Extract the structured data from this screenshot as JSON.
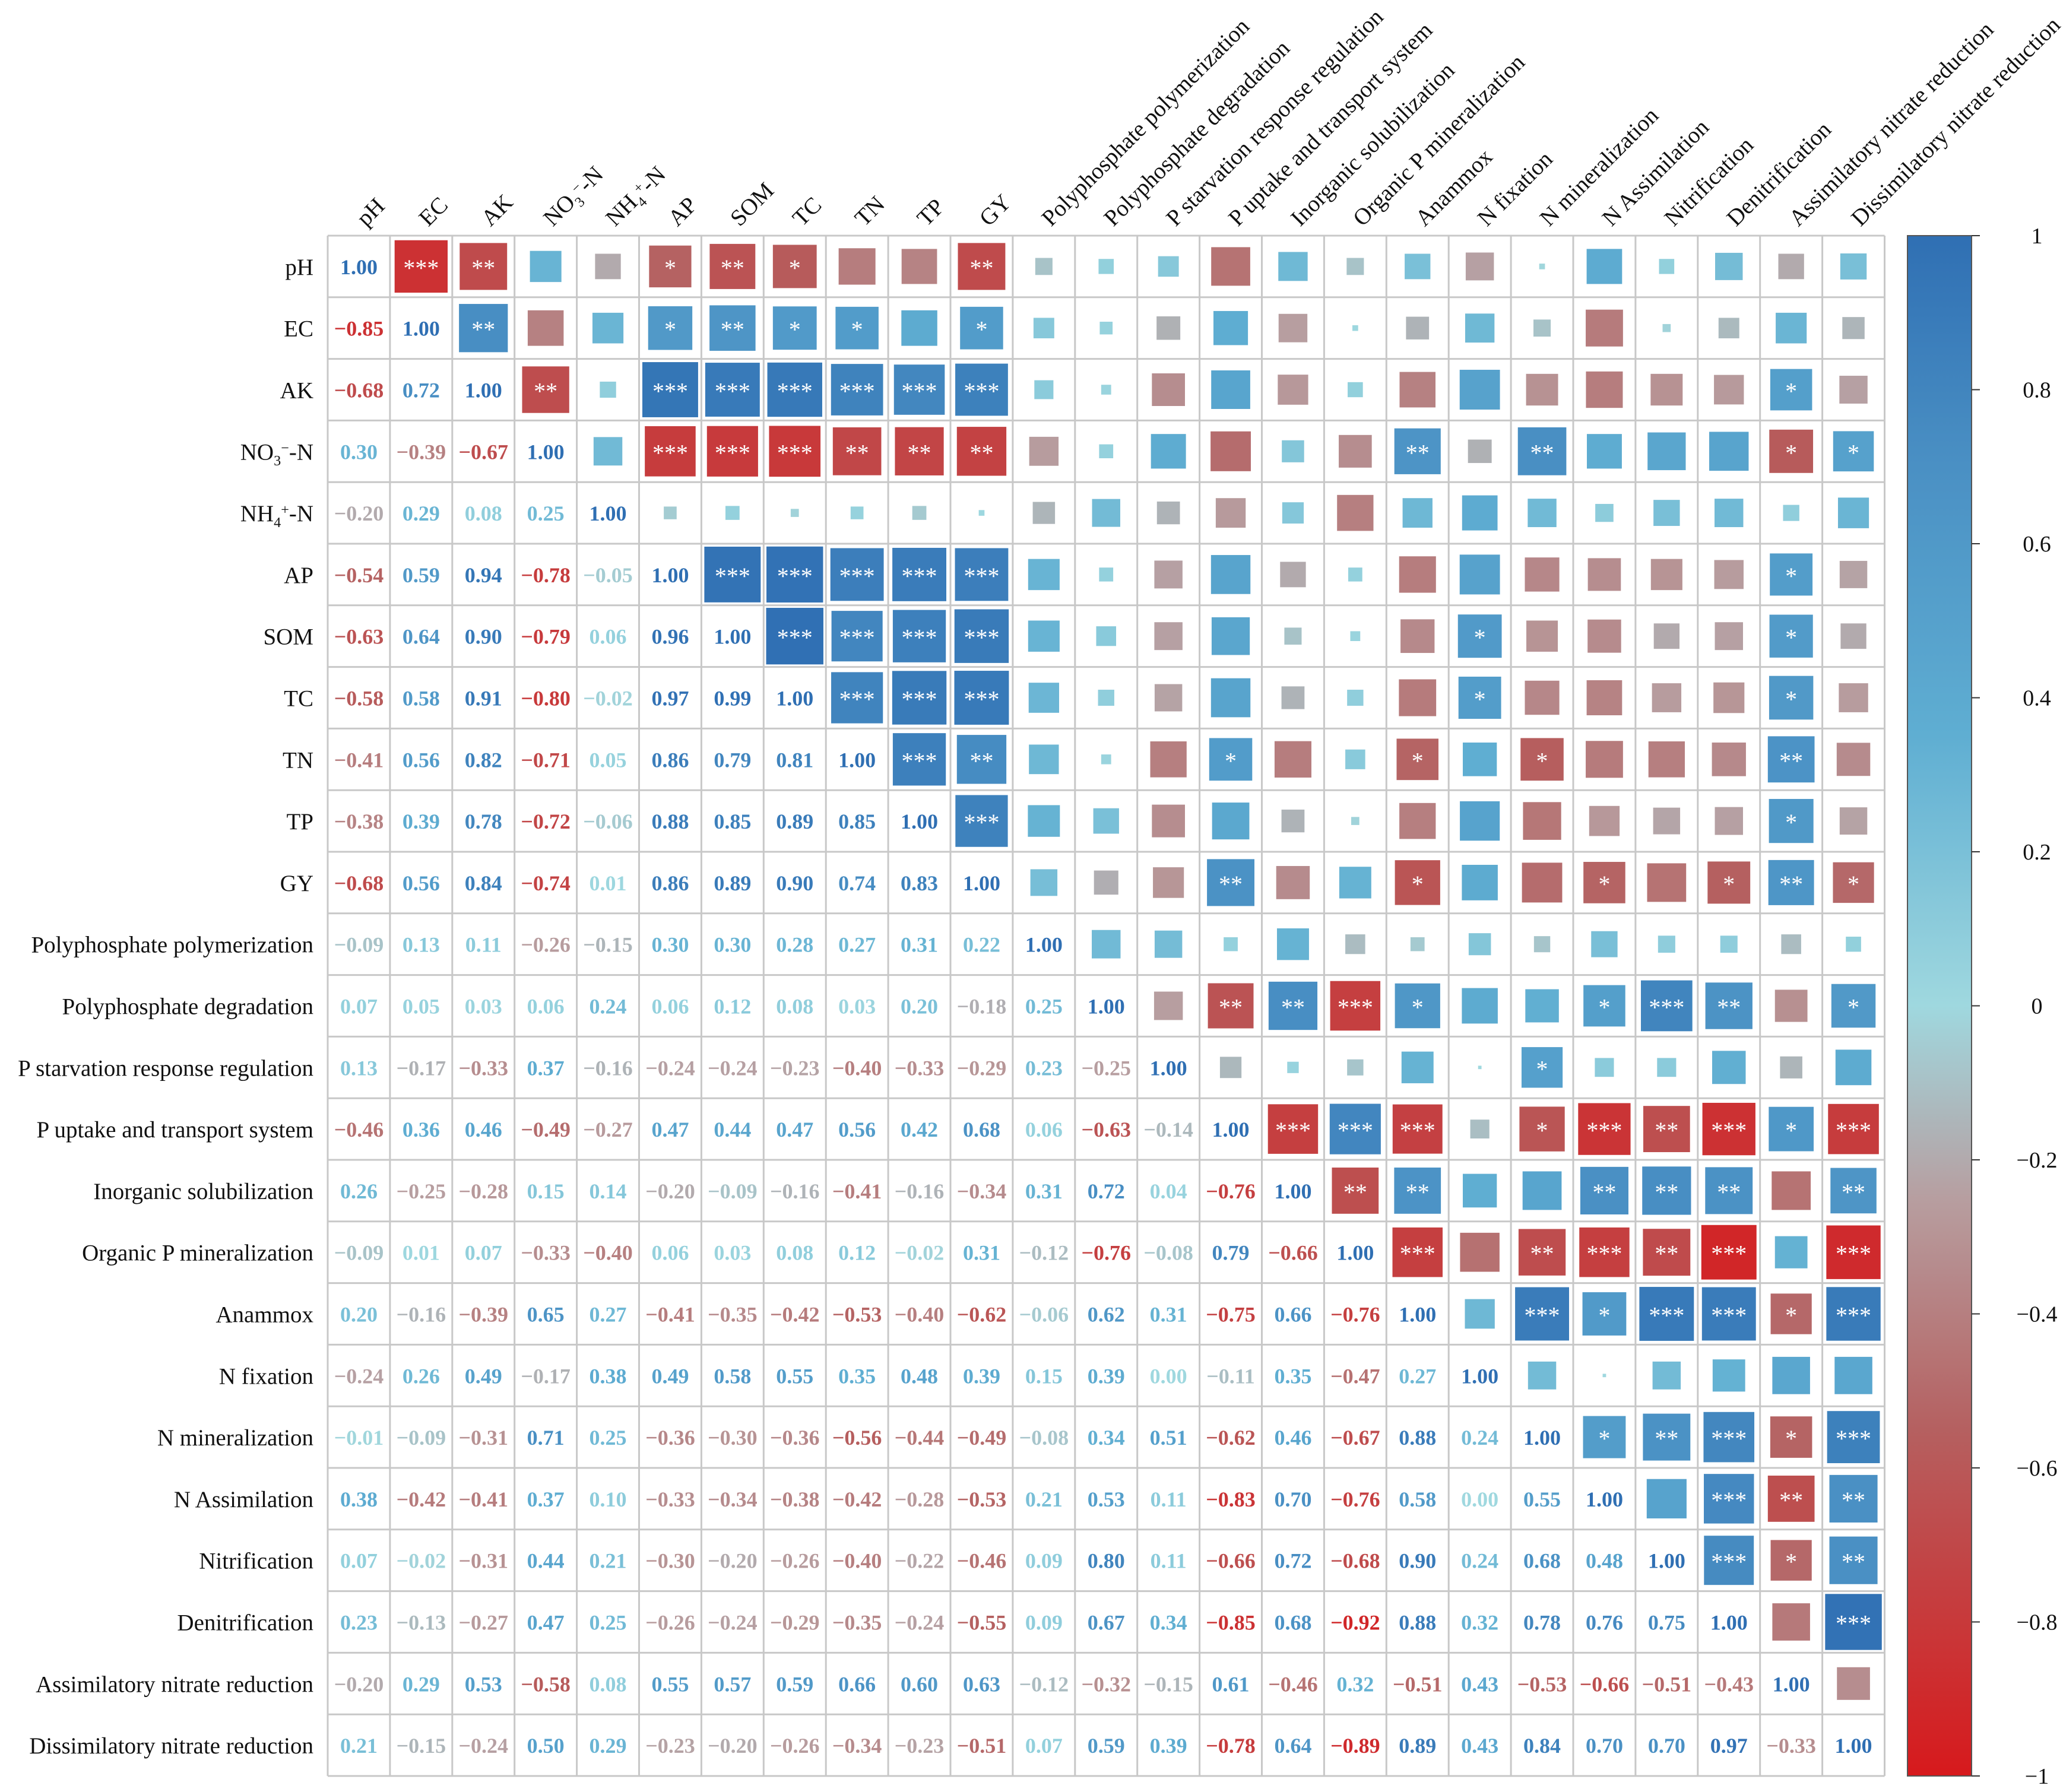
{
  "chart_data": {
    "type": "heatmap",
    "subtype": "correlation-matrix",
    "labels": [
      "pH",
      "EC",
      "AK",
      "NO3−-N",
      "NH4+-N",
      "AP",
      "SOM",
      "TC",
      "TN",
      "TP",
      "GY",
      "Polyphosphate polymerization",
      "Polyphosphate degradation",
      "P starvation response regulation",
      "P uptake and transport system",
      "Inorganic  solubilization",
      "Organic P mineralization",
      "Anammox",
      "N fixation",
      "N mineralization",
      "N Assimilation",
      "Nitrification",
      "Denitrification",
      "Assimilatory nitrate reduction",
      "Dissimilatory nitrate reduction"
    ],
    "top_labels": [
      "pH",
      "EC",
      "AK",
      "NO3−-N",
      "NH4+-N",
      "AP",
      "SOM",
      "TC",
      "TN",
      "TP",
      "GY",
      "Polyphosphate polymerization",
      "Polyphosphate degradation",
      "P starvation response regulation",
      "P uptake and transport system",
      "Inorganic  solubilization",
      "Organic P mineralization",
      "Anammox",
      "N fixation",
      "N mineralization",
      "N Assimilation",
      "Nitrification",
      "Denitrification",
      "Assimilatory nitrate reduction",
      "Dissimilatory nitrate reduction"
    ],
    "lower_triangle_values": [
      [
        "1.00"
      ],
      [
        "−0.85",
        "1.00"
      ],
      [
        "−0.68",
        "0.72",
        "1.00"
      ],
      [
        "0.30",
        "−0.39",
        "−0.67",
        "1.00"
      ],
      [
        "−0.20",
        "0.29",
        "0.08",
        "0.25",
        "1.00"
      ],
      [
        "−0.54",
        "0.59",
        "0.94",
        "−0.78",
        "−0.05",
        "1.00"
      ],
      [
        "−0.63",
        "0.64",
        "0.90",
        "−0.79",
        "0.06",
        "0.96",
        "1.00"
      ],
      [
        "−0.58",
        "0.58",
        "0.91",
        "−0.80",
        "−0.02",
        "0.97",
        "0.99",
        "1.00"
      ],
      [
        "−0.41",
        "0.56",
        "0.82",
        "−0.71",
        "0.05",
        "0.86",
        "0.79",
        "0.81",
        "1.00"
      ],
      [
        "−0.38",
        "0.39",
        "0.78",
        "−0.72",
        "−0.06",
        "0.88",
        "0.85",
        "0.89",
        "0.85",
        "1.00"
      ],
      [
        "−0.68",
        "0.56",
        "0.84",
        "−0.74",
        "0.01",
        "0.86",
        "0.89",
        "0.90",
        "0.74",
        "0.83",
        "1.00"
      ],
      [
        "−0.09",
        "0.13",
        "0.11",
        "−0.26",
        "−0.15",
        "0.30",
        "0.30",
        "0.28",
        "0.27",
        "0.31",
        "0.22",
        "1.00"
      ],
      [
        "0.07",
        "0.05",
        "0.03",
        "0.06",
        "0.24",
        "0.06",
        "0.12",
        "0.08",
        "0.03",
        "0.20",
        "−0.18",
        "0.25",
        "1.00"
      ],
      [
        "0.13",
        "−0.17",
        "−0.33",
        "0.37",
        "−0.16",
        "−0.24",
        "−0.24",
        "−0.23",
        "−0.40",
        "−0.33",
        "−0.29",
        "0.23",
        "−0.25",
        "1.00"
      ],
      [
        "−0.46",
        "0.36",
        "0.46",
        "−0.49",
        "−0.27",
        "0.47",
        "0.44",
        "0.47",
        "0.56",
        "0.42",
        "0.68",
        "0.06",
        "−0.63",
        "−0.14",
        "1.00"
      ],
      [
        "0.26",
        "−0.25",
        "−0.28",
        "0.15",
        "0.14",
        "−0.20",
        "−0.09",
        "−0.16",
        "−0.41",
        "−0.16",
        "−0.34",
        "0.31",
        "0.72",
        "0.04",
        "−0.76",
        "1.00"
      ],
      [
        "−0.09",
        "0.01",
        "0.07",
        "−0.33",
        "−0.40",
        "0.06",
        "0.03",
        "0.08",
        "0.12",
        "−0.02",
        "0.31",
        "−0.12",
        "−0.76",
        "−0.08",
        "0.79",
        "−0.66",
        "1.00"
      ],
      [
        "0.20",
        "−0.16",
        "−0.39",
        "0.65",
        "0.27",
        "−0.41",
        "−0.35",
        "−0.42",
        "−0.53",
        "−0.40",
        "−0.62",
        "−0.06",
        "0.62",
        "0.31",
        "−0.75",
        "0.66",
        "−0.76",
        "1.00"
      ],
      [
        "−0.24",
        "0.26",
        "0.49",
        "−0.17",
        "0.38",
        "0.49",
        "0.58",
        "0.55",
        "0.35",
        "0.48",
        "0.39",
        "0.15",
        "0.39",
        "0.00",
        "−0.11",
        "0.35",
        "−0.47",
        "0.27",
        "1.00"
      ],
      [
        "−0.01",
        "−0.09",
        "−0.31",
        "0.71",
        "0.25",
        "−0.36",
        "−0.30",
        "−0.36",
        "−0.56",
        "−0.44",
        "−0.49",
        "−0.08",
        "0.34",
        "0.51",
        "−0.62",
        "0.46",
        "−0.67",
        "0.88",
        "0.24",
        "1.00"
      ],
      [
        "0.38",
        "−0.42",
        "−0.41",
        "0.37",
        "0.10",
        "−0.33",
        "−0.34",
        "−0.38",
        "−0.42",
        "−0.28",
        "−0.53",
        "0.21",
        "0.53",
        "0.11",
        "−0.83",
        "0.70",
        "−0.76",
        "0.58",
        "0.00",
        "0.55",
        "1.00"
      ],
      [
        "0.07",
        "−0.02",
        "−0.31",
        "0.44",
        "0.21",
        "−0.30",
        "−0.20",
        "−0.26",
        "−0.40",
        "−0.22",
        "−0.46",
        "0.09",
        "0.80",
        "0.11",
        "−0.66",
        "0.72",
        "−0.68",
        "0.90",
        "0.24",
        "0.68",
        "0.48",
        "1.00"
      ],
      [
        "0.23",
        "−0.13",
        "−0.27",
        "0.47",
        "0.25",
        "−0.26",
        "−0.24",
        "−0.29",
        "−0.35",
        "−0.24",
        "−0.55",
        "0.09",
        "0.67",
        "0.34",
        "−0.85",
        "0.68",
        "−0.92",
        "0.88",
        "0.32",
        "0.78",
        "0.76",
        "0.75",
        "1.00"
      ],
      [
        "−0.20",
        "0.29",
        "0.53",
        "−0.58",
        "0.08",
        "0.55",
        "0.57",
        "0.59",
        "0.66",
        "0.60",
        "0.63",
        "−0.12",
        "−0.32",
        "−0.15",
        "0.61",
        "−0.46",
        "0.32",
        "−0.51",
        "0.43",
        "−0.53",
        "−0.66",
        "−0.51",
        "−0.43",
        "1.00"
      ],
      [
        "0.21",
        "−0.15",
        "−0.24",
        "0.50",
        "0.29",
        "−0.23",
        "−0.20",
        "−0.26",
        "−0.34",
        "−0.23",
        "−0.51",
        "0.07",
        "0.59",
        "0.39",
        "−0.78",
        "0.64",
        "−0.89",
        "0.89",
        "0.43",
        "0.84",
        "0.70",
        "0.70",
        "0.97",
        "−0.33",
        "1.00"
      ]
    ],
    "significance_upper": [
      "0,1,***",
      "0,2,**",
      "0,5,*",
      "0,6,**",
      "0,7,*",
      "0,10,**",
      "1,2,**",
      "1,5,*",
      "1,6,**",
      "1,7,*",
      "1,8,*",
      "1,10,*",
      "2,3,**",
      "2,5,***",
      "2,6,***",
      "2,7,***",
      "2,8,***",
      "2,9,***",
      "2,10,***",
      "2,23,*",
      "3,5,***",
      "3,6,***",
      "3,7,***",
      "3,8,**",
      "3,9,**",
      "3,10,**",
      "3,17,**",
      "3,19,**",
      "3,23,*",
      "3,24,*",
      "5,6,***",
      "5,7,***",
      "5,8,***",
      "5,9,***",
      "5,10,***",
      "5,23,*",
      "6,7,***",
      "6,8,***",
      "6,9,***",
      "6,10,***",
      "6,18,*",
      "6,23,*",
      "7,8,***",
      "7,9,***",
      "7,10,***",
      "7,18,*",
      "7,23,*",
      "8,9,***",
      "8,10,**",
      "8,14,*",
      "8,17,*",
      "8,19,*",
      "8,23,**",
      "9,10,***",
      "9,23,*",
      "10,14,**",
      "10,17,*",
      "10,20,*",
      "10,22,*",
      "10,23,**",
      "10,24,*",
      "12,14,**",
      "12,15,**",
      "12,16,***",
      "12,17,*",
      "12,20,*",
      "12,21,***",
      "12,22,**",
      "12,24,*",
      "13,19,*",
      "14,15,***",
      "14,16,***",
      "14,17,***",
      "14,19,*",
      "14,20,***",
      "14,21,**",
      "14,22,***",
      "14,23,*",
      "14,24,***",
      "15,16,**",
      "15,17,**",
      "15,20,**",
      "15,21,**",
      "15,22,**",
      "15,24,**",
      "16,17,***",
      "16,19,**",
      "16,20,***",
      "16,21,**",
      "16,22,***",
      "16,24,***",
      "17,19,***",
      "17,20,*",
      "17,21,***",
      "17,22,***",
      "17,23,*",
      "17,24,***",
      "19,20,*",
      "19,21,**",
      "19,22,***",
      "19,23,*",
      "19,24,***",
      "20,22,***",
      "20,23,**",
      "20,24,**",
      "21,22,***",
      "21,23,*",
      "21,24,**",
      "22,24,***"
    ],
    "colorbar": {
      "ticks": [
        "1",
        "0.8",
        "0.6",
        "0.4",
        "0.2",
        "0",
        "−0.2",
        "−0.4",
        "−0.6",
        "−0.8",
        "−1"
      ],
      "range": [
        -1,
        1
      ],
      "low_color": "#d7191c",
      "mid_color": "#9fd8df",
      "high_color": "#2f6fb3"
    },
    "title": "",
    "xlabel": "",
    "ylabel": ""
  }
}
